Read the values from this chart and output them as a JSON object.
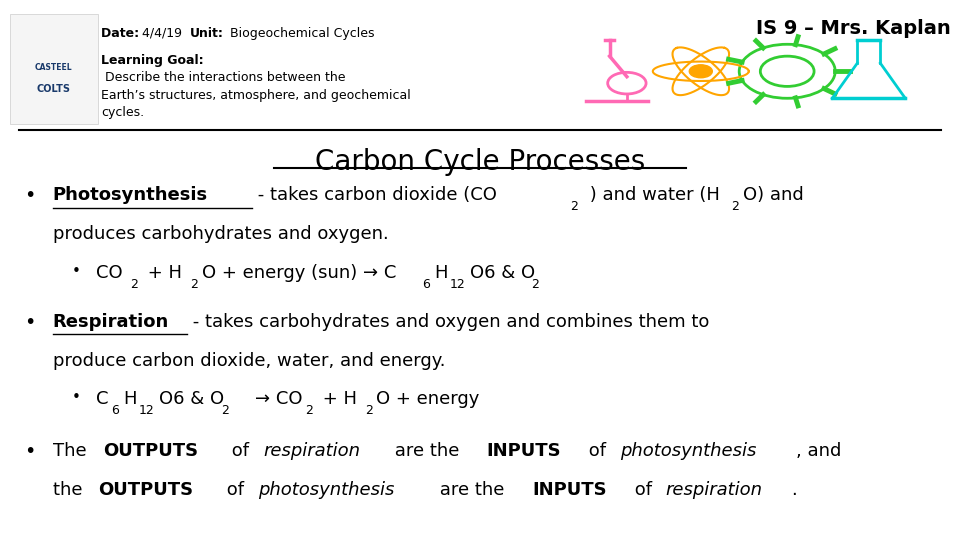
{
  "background_color": "#ffffff",
  "date_bold": "Date: ",
  "date_normal": "4/4/19 ",
  "unit_bold": "Unit:",
  "unit_normal": " Biogeochemical Cycles",
  "is_text": "IS 9 – Mrs. Kaplan",
  "lg_bold": "Learning Goal:",
  "lg_line1": " Describe the interactions between the",
  "lg_line2": "Earth’s structures, atmosphere, and geochemical",
  "lg_line3": "cycles.",
  "title": "Carbon Cycle Processes",
  "text_color": "#000000",
  "icon_microscope_color": "#FF69B4",
  "icon_atom_color": "#FFA500",
  "icon_gear_color": "#32CD32",
  "icon_flask_color": "#00CED1"
}
